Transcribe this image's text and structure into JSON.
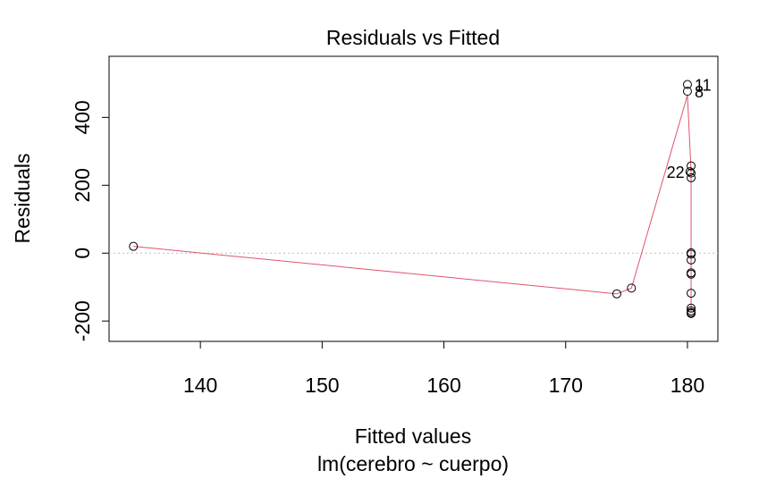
{
  "chart_data": {
    "type": "scatter",
    "title": "Residuals vs Fitted",
    "xlabel": "Fitted values",
    "subtitle": "lm(cerebro ~ cuerpo)",
    "ylabel": "Residuals",
    "xlim": [
      132.5,
      182.5
    ],
    "ylim": [
      -260,
      580
    ],
    "xticks": [
      140,
      150,
      160,
      170,
      180
    ],
    "yticks": [
      -200,
      0,
      200,
      400
    ],
    "zero_line": true,
    "points": [
      {
        "x": 134.5,
        "y": 20
      },
      {
        "x": 174.2,
        "y": -120
      },
      {
        "x": 175.4,
        "y": -103
      },
      {
        "x": 180.0,
        "y": 497,
        "label": "11"
      },
      {
        "x": 180.0,
        "y": 477,
        "label": "8"
      },
      {
        "x": 180.2,
        "y": 240,
        "label": "22"
      },
      {
        "x": 180.3,
        "y": 257
      },
      {
        "x": 180.3,
        "y": 236
      },
      {
        "x": 180.3,
        "y": 222
      },
      {
        "x": 180.3,
        "y": 1
      },
      {
        "x": 180.3,
        "y": -3
      },
      {
        "x": 180.3,
        "y": -20
      },
      {
        "x": 180.3,
        "y": -58
      },
      {
        "x": 180.3,
        "y": -62
      },
      {
        "x": 180.3,
        "y": -118
      },
      {
        "x": 180.3,
        "y": -162
      },
      {
        "x": 180.3,
        "y": -170
      },
      {
        "x": 180.3,
        "y": -175
      },
      {
        "x": 180.3,
        "y": -178
      }
    ],
    "smoother": [
      {
        "x": 134.5,
        "y": 20
      },
      {
        "x": 174.2,
        "y": -120
      },
      {
        "x": 175.4,
        "y": -103
      },
      {
        "x": 180.0,
        "y": 465
      },
      {
        "x": 180.3,
        "y": 240
      },
      {
        "x": 180.3,
        "y": -175
      }
    ],
    "colors": {
      "smoother": "#DF536B",
      "zero_line": "#BEBEBE",
      "points": "#000000"
    }
  }
}
